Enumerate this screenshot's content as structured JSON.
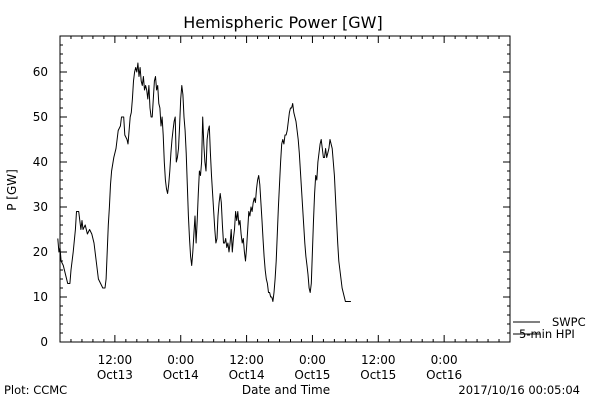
{
  "chart_data": {
    "type": "line",
    "title": "Hemispheric Power [GW]",
    "xlabel": "Date and Time",
    "ylabel": "P [GW]",
    "ylim": [
      0,
      68
    ],
    "xlim_hours": [
      -17,
      24
    ],
    "y_ticks": [
      0,
      10,
      20,
      30,
      40,
      50,
      60
    ],
    "x_ticks": [
      {
        "hour": -12,
        "time": "12:00",
        "date": "Oct13"
      },
      {
        "hour": -6,
        "time": "0:00",
        "date": "Oct14"
      },
      {
        "hour": 0,
        "time": "12:00",
        "date": "Oct14"
      },
      {
        "hour": 6,
        "time": "0:00",
        "date": "Oct15"
      },
      {
        "hour": 12,
        "time": "12:00",
        "date": "Oct15"
      },
      {
        "hour": 18,
        "time": "0:00",
        "date": "Oct16"
      }
    ],
    "grid": false,
    "legend_position": "bottom-right",
    "series": [
      {
        "name": "SWPC",
        "color": "#000000",
        "points": []
      },
      {
        "name": "5-min HPI",
        "color": "#000000",
        "points": [
          [
            -17.2,
            23
          ],
          [
            -17.1,
            20
          ],
          [
            -17.0,
            21
          ],
          [
            -16.9,
            18
          ],
          [
            -16.7,
            17
          ],
          [
            -16.5,
            15
          ],
          [
            -16.3,
            13
          ],
          [
            -16.1,
            13
          ],
          [
            -16.0,
            16
          ],
          [
            -15.8,
            20
          ],
          [
            -15.6,
            25
          ],
          [
            -15.5,
            29
          ],
          [
            -15.3,
            29
          ],
          [
            -15.1,
            25
          ],
          [
            -15.0,
            27
          ],
          [
            -14.9,
            25
          ],
          [
            -14.7,
            26
          ],
          [
            -14.5,
            24
          ],
          [
            -14.3,
            25
          ],
          [
            -14.1,
            24
          ],
          [
            -13.9,
            22
          ],
          [
            -13.7,
            18
          ],
          [
            -13.5,
            14
          ],
          [
            -13.3,
            13
          ],
          [
            -13.1,
            12
          ],
          [
            -12.9,
            12
          ],
          [
            -12.8,
            14
          ],
          [
            -12.7,
            20
          ],
          [
            -12.6,
            26
          ],
          [
            -12.5,
            30
          ],
          [
            -12.4,
            35
          ],
          [
            -12.3,
            38
          ],
          [
            -12.1,
            41
          ],
          [
            -11.9,
            43
          ],
          [
            -11.8,
            45
          ],
          [
            -11.7,
            47
          ],
          [
            -11.5,
            48
          ],
          [
            -11.4,
            50
          ],
          [
            -11.2,
            50
          ],
          [
            -11.1,
            46
          ],
          [
            -10.9,
            45
          ],
          [
            -10.8,
            44
          ],
          [
            -10.7,
            47
          ],
          [
            -10.6,
            50
          ],
          [
            -10.5,
            51
          ],
          [
            -10.4,
            54
          ],
          [
            -10.3,
            58
          ],
          [
            -10.2,
            60
          ],
          [
            -10.1,
            61
          ],
          [
            -10.0,
            60
          ],
          [
            -9.9,
            62
          ],
          [
            -9.8,
            59
          ],
          [
            -9.7,
            61
          ],
          [
            -9.6,
            58
          ],
          [
            -9.5,
            57
          ],
          [
            -9.4,
            59
          ],
          [
            -9.3,
            56
          ],
          [
            -9.2,
            57
          ],
          [
            -9.1,
            56
          ],
          [
            -9.0,
            54
          ],
          [
            -8.9,
            57
          ],
          [
            -8.8,
            52
          ],
          [
            -8.7,
            50
          ],
          [
            -8.6,
            50
          ],
          [
            -8.5,
            54
          ],
          [
            -8.4,
            58
          ],
          [
            -8.3,
            59
          ],
          [
            -8.2,
            56
          ],
          [
            -8.1,
            57
          ],
          [
            -8.0,
            53
          ],
          [
            -7.9,
            52
          ],
          [
            -7.8,
            48
          ],
          [
            -7.7,
            50
          ],
          [
            -7.6,
            46
          ],
          [
            -7.5,
            40
          ],
          [
            -7.4,
            36
          ],
          [
            -7.3,
            34
          ],
          [
            -7.2,
            33
          ],
          [
            -7.1,
            35
          ],
          [
            -7.0,
            38
          ],
          [
            -6.9,
            42
          ],
          [
            -6.8,
            45
          ],
          [
            -6.7,
            47
          ],
          [
            -6.6,
            49
          ],
          [
            -6.5,
            50
          ],
          [
            -6.4,
            40
          ],
          [
            -6.3,
            41
          ],
          [
            -6.2,
            43
          ],
          [
            -6.1,
            48
          ],
          [
            -6.0,
            54
          ],
          [
            -5.9,
            57
          ],
          [
            -5.8,
            55
          ],
          [
            -5.7,
            50
          ],
          [
            -5.6,
            47
          ],
          [
            -5.5,
            42
          ],
          [
            -5.4,
            35
          ],
          [
            -5.3,
            28
          ],
          [
            -5.2,
            23
          ],
          [
            -5.1,
            19
          ],
          [
            -5.0,
            17
          ],
          [
            -4.9,
            20
          ],
          [
            -4.8,
            24
          ],
          [
            -4.7,
            28
          ],
          [
            -4.6,
            22
          ],
          [
            -4.5,
            27
          ],
          [
            -4.4,
            33
          ],
          [
            -4.3,
            38
          ],
          [
            -4.2,
            37
          ],
          [
            -4.1,
            40
          ],
          [
            -4.0,
            50
          ],
          [
            -3.9,
            44
          ],
          [
            -3.8,
            40
          ],
          [
            -3.7,
            38
          ],
          [
            -3.6,
            45
          ],
          [
            -3.5,
            47
          ],
          [
            -3.4,
            48
          ],
          [
            -3.3,
            42
          ],
          [
            -3.2,
            37
          ],
          [
            -3.1,
            33
          ],
          [
            -3.0,
            29
          ],
          [
            -2.9,
            25
          ],
          [
            -2.8,
            22
          ],
          [
            -2.7,
            23
          ],
          [
            -2.6,
            28
          ],
          [
            -2.5,
            31
          ],
          [
            -2.4,
            33
          ],
          [
            -2.3,
            31
          ],
          [
            -2.2,
            26
          ],
          [
            -2.1,
            22
          ],
          [
            -2.0,
            22
          ],
          [
            -1.9,
            23
          ],
          [
            -1.8,
            21
          ],
          [
            -1.7,
            22
          ],
          [
            -1.6,
            20
          ],
          [
            -1.5,
            22
          ],
          [
            -1.4,
            25
          ],
          [
            -1.3,
            20
          ],
          [
            -1.2,
            23
          ],
          [
            -1.1,
            25
          ],
          [
            -1.0,
            29
          ],
          [
            -0.9,
            27
          ],
          [
            -0.8,
            29
          ],
          [
            -0.7,
            26
          ],
          [
            -0.6,
            27
          ],
          [
            -0.5,
            24
          ],
          [
            -0.4,
            22
          ],
          [
            -0.3,
            23
          ],
          [
            -0.2,
            20
          ],
          [
            -0.1,
            18
          ],
          [
            0.0,
            21
          ],
          [
            0.1,
            25
          ],
          [
            0.2,
            29
          ],
          [
            0.3,
            28
          ],
          [
            0.4,
            30
          ],
          [
            0.5,
            29
          ],
          [
            0.6,
            31
          ],
          [
            0.7,
            32
          ],
          [
            0.8,
            31
          ],
          [
            0.9,
            34
          ],
          [
            1.0,
            36
          ],
          [
            1.1,
            37
          ],
          [
            1.2,
            35
          ],
          [
            1.3,
            31
          ],
          [
            1.4,
            27
          ],
          [
            1.5,
            23
          ],
          [
            1.6,
            19
          ],
          [
            1.7,
            16
          ],
          [
            1.8,
            14
          ],
          [
            1.9,
            13
          ],
          [
            2.0,
            11
          ],
          [
            2.1,
            11
          ],
          [
            2.2,
            10
          ],
          [
            2.3,
            10
          ],
          [
            2.4,
            9
          ],
          [
            2.5,
            11
          ],
          [
            2.6,
            14
          ],
          [
            2.7,
            18
          ],
          [
            2.8,
            24
          ],
          [
            2.9,
            30
          ],
          [
            3.0,
            35
          ],
          [
            3.1,
            40
          ],
          [
            3.2,
            44
          ],
          [
            3.3,
            45
          ],
          [
            3.4,
            44
          ],
          [
            3.5,
            46
          ],
          [
            3.6,
            46
          ],
          [
            3.7,
            47
          ],
          [
            3.8,
            49
          ],
          [
            3.9,
            51
          ],
          [
            4.0,
            52
          ],
          [
            4.1,
            52
          ],
          [
            4.2,
            53
          ],
          [
            4.3,
            51
          ],
          [
            4.4,
            50
          ],
          [
            4.5,
            49
          ],
          [
            4.6,
            47
          ],
          [
            4.7,
            45
          ],
          [
            4.8,
            42
          ],
          [
            4.9,
            38
          ],
          [
            5.0,
            34
          ],
          [
            5.1,
            30
          ],
          [
            5.2,
            26
          ],
          [
            5.3,
            22
          ],
          [
            5.4,
            19
          ],
          [
            5.5,
            17
          ],
          [
            5.6,
            15
          ],
          [
            5.7,
            12
          ],
          [
            5.8,
            11
          ],
          [
            5.9,
            13
          ],
          [
            6.0,
            20
          ],
          [
            6.1,
            27
          ],
          [
            6.2,
            33
          ],
          [
            6.3,
            37
          ],
          [
            6.4,
            36
          ],
          [
            6.5,
            40
          ],
          [
            6.6,
            42
          ],
          [
            6.7,
            44
          ],
          [
            6.8,
            45
          ],
          [
            6.9,
            43
          ],
          [
            7.0,
            41
          ],
          [
            7.1,
            41
          ],
          [
            7.2,
            43
          ],
          [
            7.3,
            41
          ],
          [
            7.4,
            42
          ],
          [
            7.5,
            43
          ],
          [
            7.6,
            45
          ],
          [
            7.7,
            44
          ],
          [
            7.8,
            43
          ],
          [
            7.9,
            40
          ],
          [
            8.0,
            37
          ],
          [
            8.1,
            32
          ],
          [
            8.2,
            27
          ],
          [
            8.3,
            22
          ],
          [
            8.4,
            18
          ],
          [
            8.5,
            16
          ],
          [
            8.6,
            14
          ],
          [
            8.7,
            12
          ],
          [
            8.8,
            11
          ],
          [
            8.9,
            10
          ],
          [
            9.0,
            9
          ],
          [
            9.1,
            9
          ],
          [
            9.2,
            9
          ],
          [
            9.3,
            9
          ],
          [
            9.4,
            9
          ],
          [
            9.5,
            9
          ]
        ]
      }
    ]
  },
  "footer": {
    "plot_credit": "Plot: CCMC",
    "timestamp": "2017/10/16 00:05:04"
  }
}
